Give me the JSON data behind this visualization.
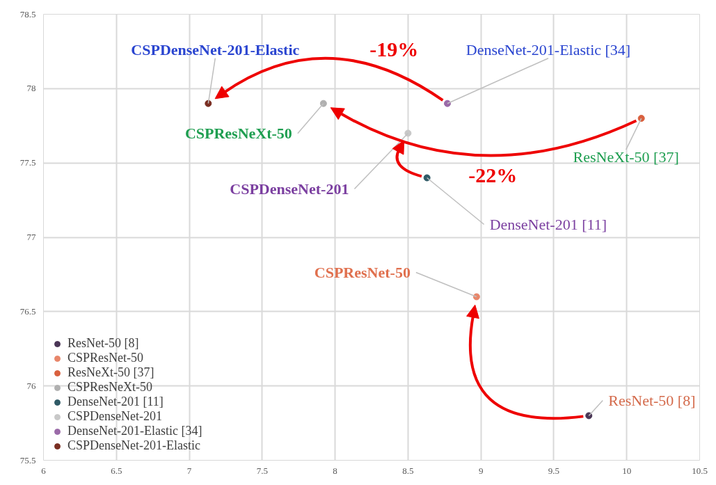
{
  "chart_data": {
    "type": "scatter",
    "xlim": [
      6,
      10.5
    ],
    "ylim": [
      75.5,
      78.5
    ],
    "xticks": [
      6,
      6.5,
      7,
      7.5,
      8,
      8.5,
      9,
      9.5,
      10,
      10.5
    ],
    "yticks": [
      75.5,
      76,
      76.5,
      77,
      77.5,
      78,
      78.5
    ],
    "grid": true,
    "legend": "bottom left",
    "marker": "circle",
    "series": [
      {
        "name": "ResNet-50 [8]",
        "color": "#4a3656",
        "x": [
          9.74
        ],
        "values": [
          75.8
        ]
      },
      {
        "name": "CSPResNet-50",
        "color": "#e8866a",
        "x": [
          8.97
        ],
        "values": [
          76.6
        ]
      },
      {
        "name": "ResNeXt-50 [37]",
        "color": "#d9603e",
        "x": [
          10.1
        ],
        "values": [
          77.8
        ]
      },
      {
        "name": "CSPResNeXt-50",
        "color": "#b0b0b0",
        "x": [
          7.92
        ],
        "values": [
          77.9
        ]
      },
      {
        "name": "DenseNet-201 [11]",
        "color": "#2f5a66",
        "x": [
          8.63
        ],
        "values": [
          77.4
        ]
      },
      {
        "name": "CSPDenseNet-201",
        "color": "#c8c8c8",
        "x": [
          8.5
        ],
        "values": [
          77.7
        ]
      },
      {
        "name": "DenseNet-201-Elastic [34]",
        "color": "#9a6aa8",
        "x": [
          8.77
        ],
        "values": [
          77.9
        ]
      },
      {
        "name": "CSPDenseNet-201-Elastic",
        "color": "#7a2e22",
        "x": [
          7.13
        ],
        "values": [
          77.9
        ]
      }
    ],
    "annotations": [
      "-19%",
      "-22%"
    ]
  }
}
